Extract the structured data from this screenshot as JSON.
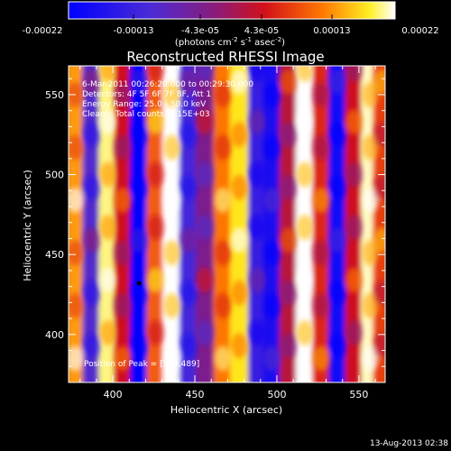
{
  "colorbar": {
    "tick_labels": [
      "-0.00022",
      "-0.00013",
      "-4.3e-05",
      "4.3e-05",
      "0.00013",
      "0.00022"
    ],
    "unit_main": "(photons cm",
    "unit_sup1": "-2",
    "unit_mid1": " s",
    "unit_sup2": "-1",
    "unit_mid2": " asec",
    "unit_sup3": "-2",
    "unit_end": ")"
  },
  "chart_data": {
    "type": "heatmap",
    "title": "Reconstructed RHESSI Image",
    "xlabel": "Heliocentric X (arcsec)",
    "ylabel": "Heliocentric Y (arcsec)",
    "xlim": [
      373,
      566
    ],
    "ylim": [
      370,
      568
    ],
    "x_ticks": [
      400,
      450,
      500,
      550
    ],
    "y_ticks": [
      400,
      450,
      500,
      550
    ],
    "tick_labels_x": [
      "400",
      "450",
      "500",
      "550"
    ],
    "tick_labels_y": [
      "400",
      "450",
      "500",
      "550"
    ],
    "colormap": "blue-purple-red-yellow-white",
    "color_range": [
      -0.00022,
      0.00022
    ],
    "stripes": [
      {
        "x": 377,
        "value": 0.00014
      },
      {
        "x": 387,
        "value": -0.0001
      },
      {
        "x": 397,
        "value": 0.0002
      },
      {
        "x": 406,
        "value": 4e-05
      },
      {
        "x": 416,
        "value": -0.00022
      },
      {
        "x": 426,
        "value": 0.0001
      },
      {
        "x": 436,
        "value": 0.00022
      },
      {
        "x": 446,
        "value": -0.00012
      },
      {
        "x": 456,
        "value": -4e-05
      },
      {
        "x": 467,
        "value": 0.00012
      },
      {
        "x": 477,
        "value": 0.00018
      },
      {
        "x": 488,
        "value": -0.00014
      },
      {
        "x": 497,
        "value": -0.00018
      },
      {
        "x": 507,
        "value": 2e-05
      },
      {
        "x": 517,
        "value": 0.00022
      },
      {
        "x": 527,
        "value": 6e-05
      },
      {
        "x": 537,
        "value": -0.0002
      },
      {
        "x": 547,
        "value": 4e-05
      },
      {
        "x": 557,
        "value": 0.00021
      },
      {
        "x": 564,
        "value": 8e-05
      }
    ],
    "annotations": [
      "6-Mar-2011 00:26:20.000 to 00:29:30.000",
      "Detectors: 4F 5F 6F 7F 8F, Att 1",
      "Energy Range: 25.0 - 50.0 keV",
      "Clean    Total counts: 3.15E+03"
    ],
    "peak_label": "Position of Peak = [559,489]",
    "marker": {
      "x": 416,
      "y": 432
    }
  },
  "timestamp": "13-Aug-2013 02:38"
}
